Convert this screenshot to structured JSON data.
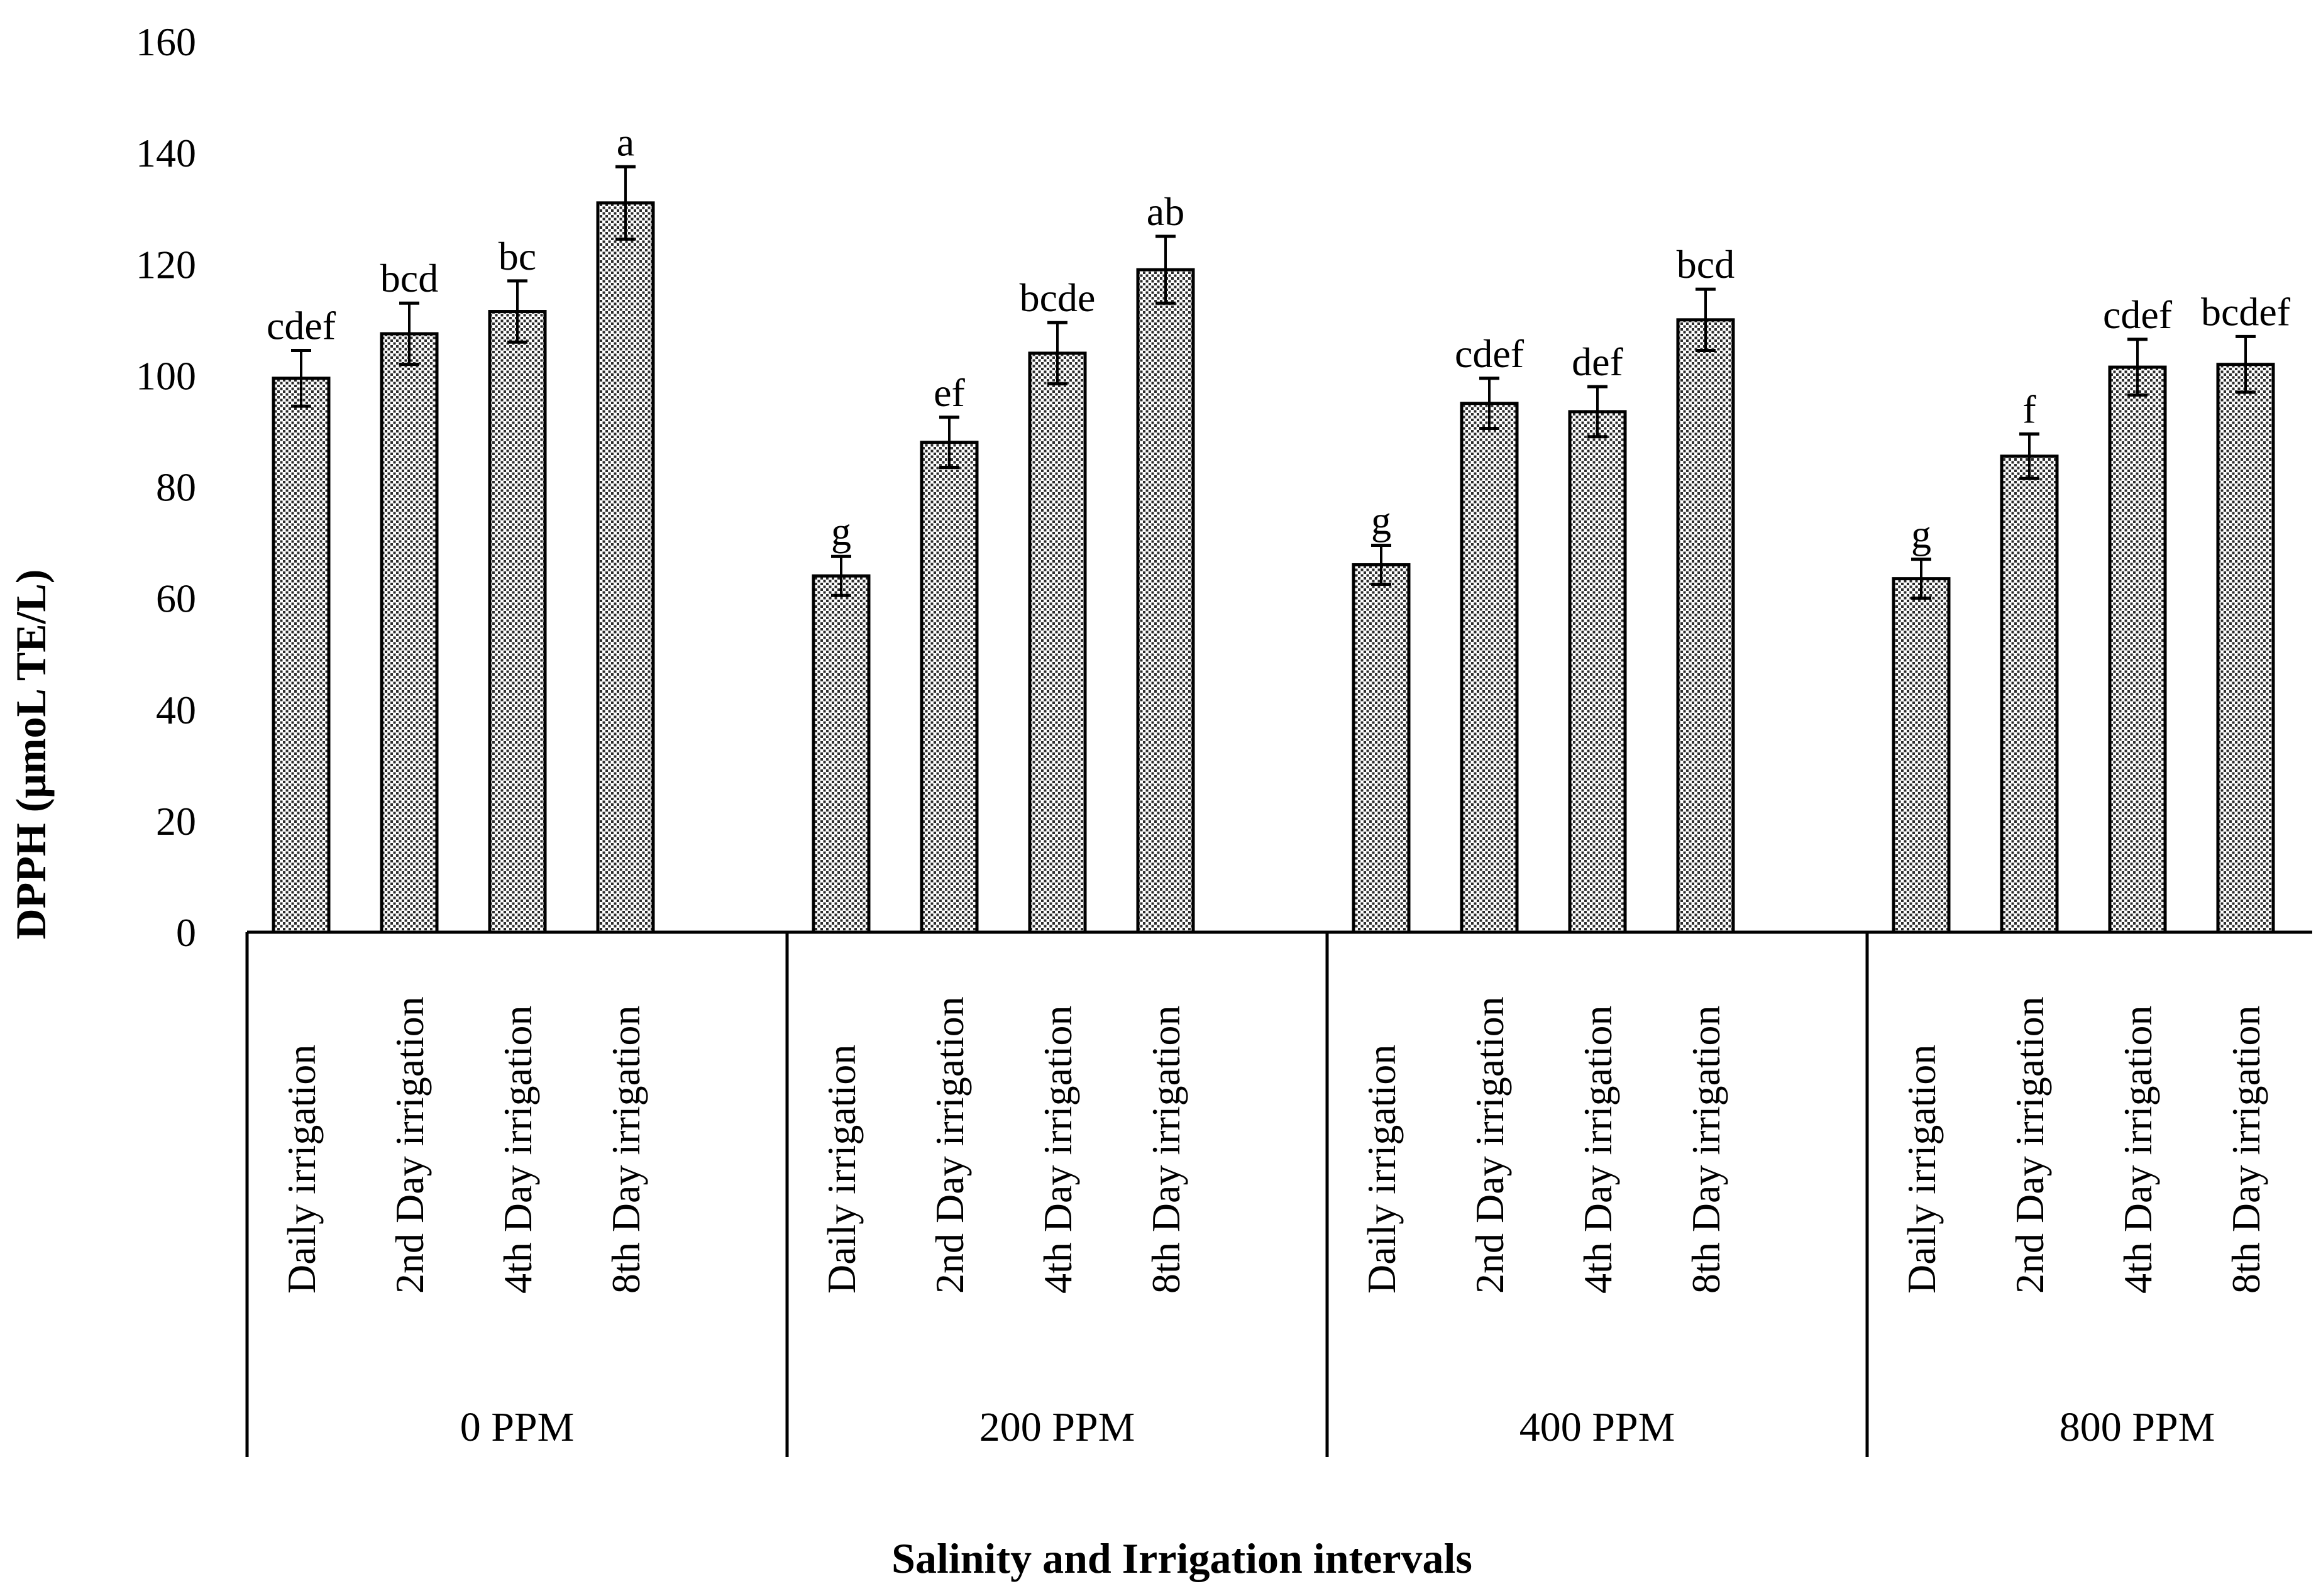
{
  "chart_data": {
    "type": "bar",
    "title": "",
    "xlabel": "Salinity and Irrigation intervals",
    "ylabel": "DPPH (μmoL TE/L)",
    "ylim": [
      0,
      160
    ],
    "yticks": [
      0,
      20,
      40,
      60,
      80,
      100,
      120,
      140,
      160
    ],
    "grid": false,
    "legend": "none",
    "groups": [
      {
        "name": "0 PPM",
        "categories": [
          "Daily irrigation",
          "2nd Day irrigation",
          "4th Day irrigation",
          "8th Day irrigation"
        ],
        "values": [
          99.5,
          107.5,
          111.5,
          131
        ],
        "errors": [
          5,
          5.5,
          5.5,
          6.5
        ],
        "letters": [
          "cdef",
          "bcd",
          "bc",
          "a"
        ]
      },
      {
        "name": "200 PPM",
        "categories": [
          "Daily irrigation",
          "2nd Day irrigation",
          "4th Day irrigation",
          "8th Day irrigation"
        ],
        "values": [
          64,
          88,
          104,
          119
        ],
        "errors": [
          3.5,
          4.5,
          5.5,
          6
        ],
        "letters": [
          "g",
          "ef",
          "bcde",
          "ab"
        ]
      },
      {
        "name": "400 PPM",
        "categories": [
          "Daily irrigation",
          "2nd Day irrigation",
          "4th Day irrigation",
          "8th Day irrigation"
        ],
        "values": [
          66,
          95,
          93.5,
          110
        ],
        "errors": [
          3.5,
          4.5,
          4.5,
          5.5
        ],
        "letters": [
          "g",
          "cdef",
          "def",
          "bcd"
        ]
      },
      {
        "name": "800 PPM",
        "categories": [
          "Daily irrigation",
          "2nd Day irrigation",
          "4th Day irrigation",
          "8th Day irrigation"
        ],
        "values": [
          63.5,
          85.5,
          101.5,
          102
        ],
        "errors": [
          3.5,
          4,
          5,
          5
        ],
        "letters": [
          "g",
          "f",
          "cdef",
          "bcdef"
        ]
      }
    ]
  }
}
